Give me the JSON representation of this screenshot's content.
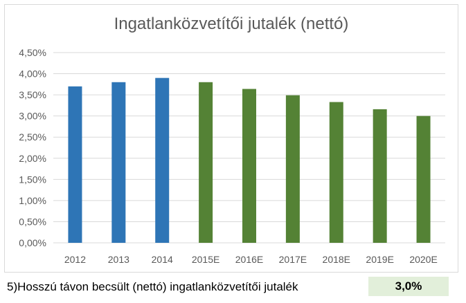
{
  "chart_data": {
    "type": "bar",
    "title": "Ingatlanközvetítői jutalék (nettó)",
    "categories": [
      "2012",
      "2013",
      "2014",
      "2015E",
      "2016E",
      "2017E",
      "2018E",
      "2019E",
      "2020E"
    ],
    "values": [
      3.7,
      3.8,
      3.9,
      3.8,
      3.64,
      3.49,
      3.33,
      3.16,
      3.0
    ],
    "unit": "%",
    "ylim": [
      0,
      4.5
    ],
    "yticks": [
      "0,00%",
      "0,50%",
      "1,00%",
      "1,50%",
      "2,00%",
      "2,50%",
      "3,00%",
      "3,50%",
      "4,00%",
      "4,50%"
    ],
    "grid": true,
    "legend": "none",
    "colors": {
      "actual": "#2e75b6",
      "estimate": "#548235",
      "grid": "#d9d9d9",
      "axis_text": "#595959"
    },
    "bar_groups": [
      "actual",
      "actual",
      "actual",
      "estimate",
      "estimate",
      "estimate",
      "estimate",
      "estimate",
      "estimate"
    ]
  },
  "footer": {
    "label": "5)Hosszú távon becsült (nettó) ingatlanközvetítői jutalék",
    "value": "3,0%",
    "value_bg": "#e2efda"
  }
}
